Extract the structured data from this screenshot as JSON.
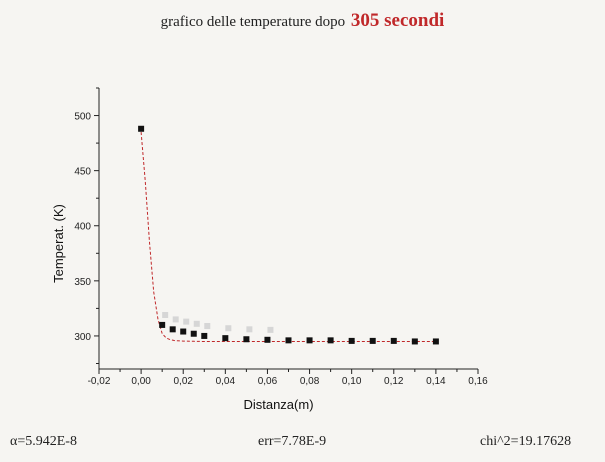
{
  "title": {
    "prefix": "grafico delle temperature dopo",
    "highlight": "305 secondi"
  },
  "footer": {
    "alpha": "α=5.942E-8",
    "err": "err=7.78E-9",
    "chi2": "chi^2=19.17628"
  },
  "colors": {
    "marker": "#111111",
    "fit": "#c0282a",
    "ghost": "#d6d6d6",
    "axis": "#222222"
  },
  "chart_data": {
    "type": "scatter",
    "xlabel": "Distanza(m)",
    "ylabel": "Temperat. (K)",
    "xlim": [
      -0.02,
      0.16
    ],
    "ylim": [
      270,
      525
    ],
    "xticks": [
      -0.02,
      0.0,
      0.02,
      0.04,
      0.06,
      0.08,
      0.1,
      0.12,
      0.14,
      0.16
    ],
    "xtick_labels": [
      "-0,02",
      "0,00",
      "0,02",
      "0,04",
      "0,06",
      "0,08",
      "0,10",
      "0,12",
      "0,14",
      "0,16"
    ],
    "yticks": [
      300,
      350,
      400,
      450,
      500
    ],
    "ytick_labels": [
      "300",
      "350",
      "400",
      "450",
      "500"
    ],
    "series": [
      {
        "kind": "points",
        "x": [
          0.0,
          0.01,
          0.015,
          0.02,
          0.025,
          0.03,
          0.04,
          0.05,
          0.06,
          0.07,
          0.08,
          0.09,
          0.1,
          0.11,
          0.12,
          0.13,
          0.14
        ],
        "y": [
          488,
          310,
          306,
          304,
          302,
          300,
          298,
          297,
          296.5,
          296,
          296,
          296,
          295.5,
          295.5,
          295.5,
          295,
          295
        ]
      },
      {
        "kind": "fit-line",
        "x": [
          0.0,
          0.002,
          0.004,
          0.006,
          0.008,
          0.01,
          0.012,
          0.014,
          0.016,
          0.02,
          0.025,
          0.03,
          0.04,
          0.06,
          0.08,
          0.1,
          0.12,
          0.14
        ],
        "y": [
          485,
          440,
          385,
          340,
          315,
          302,
          298,
          296.5,
          295.8,
          295.3,
          295.1,
          295,
          295,
          295,
          295,
          295,
          295,
          295
        ]
      }
    ]
  }
}
